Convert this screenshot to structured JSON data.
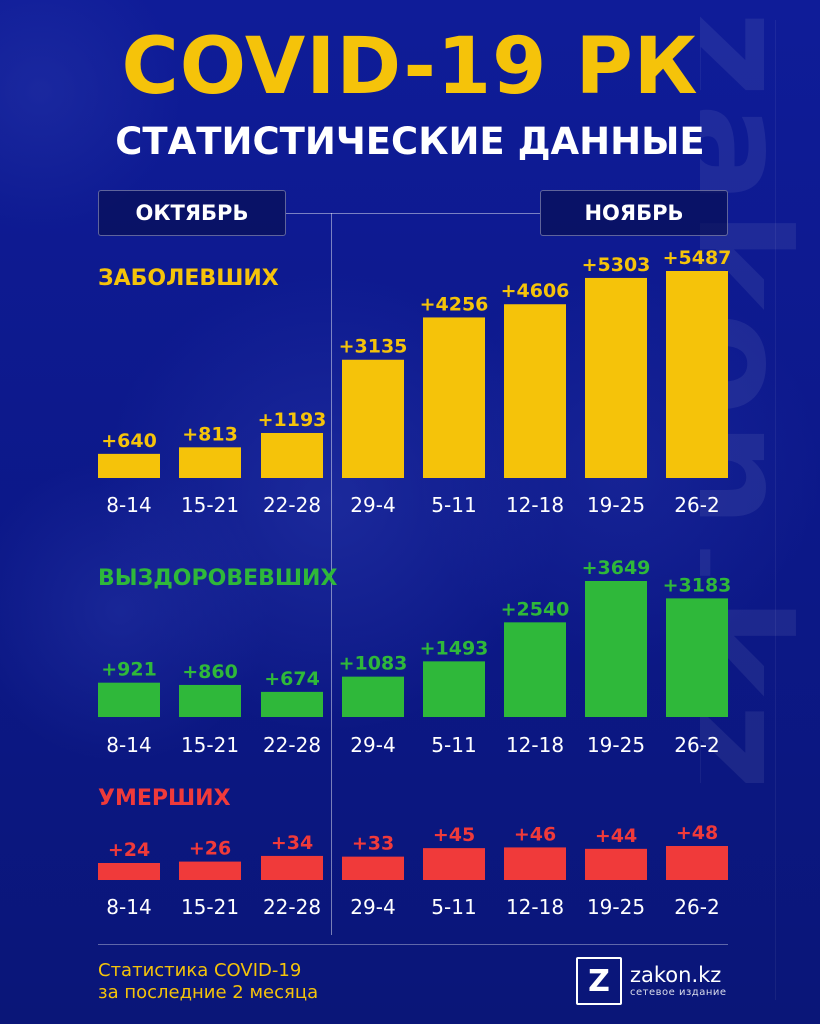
{
  "header": {
    "title": "COVID-19 РК",
    "subtitle": "СТАТИСТИЧЕСКИЕ ДАННЫЕ"
  },
  "months": {
    "october": "ОКТЯБРЬ",
    "november": "НОЯБРЬ"
  },
  "watermark": "zakon.kz",
  "colors": {
    "background": "#0d1a8c",
    "title": "#f5c30a",
    "cases": "#f5c30a",
    "recovered": "#2fb83a",
    "deaths": "#f03a3a"
  },
  "chart_data": [
    {
      "type": "bar",
      "title": "ЗАБОЛЕВШИХ",
      "color": "#f5c30a",
      "categories": [
        "8-14",
        "15-21",
        "22-28",
        "29-4",
        "5-11",
        "12-18",
        "19-25",
        "26-2"
      ],
      "values": [
        640,
        813,
        1193,
        3135,
        4256,
        4606,
        5303,
        5487
      ],
      "value_labels": [
        "+640",
        "+813",
        "+1193",
        "+3135",
        "+4256",
        "+4606",
        "+5303",
        "+5487"
      ]
    },
    {
      "type": "bar",
      "title": "ВЫЗДОРОВЕВШИХ",
      "color": "#2fb83a",
      "categories": [
        "8-14",
        "15-21",
        "22-28",
        "29-4",
        "5-11",
        "12-18",
        "19-25",
        "26-2"
      ],
      "values": [
        921,
        860,
        674,
        1083,
        1493,
        2540,
        3649,
        3183
      ],
      "value_labels": [
        "+921",
        "+860",
        "+674",
        "+1083",
        "+1493",
        "+2540",
        "+3649",
        "+3183"
      ]
    },
    {
      "type": "bar",
      "title": "УМЕРШИХ",
      "color": "#f03a3a",
      "categories": [
        "8-14",
        "15-21",
        "22-28",
        "29-4",
        "5-11",
        "12-18",
        "19-25",
        "26-2"
      ],
      "values": [
        24,
        26,
        34,
        33,
        45,
        46,
        44,
        48
      ],
      "value_labels": [
        "+24",
        "+26",
        "+34",
        "+33",
        "+45",
        "+46",
        "+44",
        "+48"
      ]
    }
  ],
  "footer": {
    "note_line1": "Статистика COVID-19",
    "note_line2": "за последние 2 месяца",
    "logo_letter": "Z",
    "logo_name": "zakon.kz",
    "logo_tagline": "сетевое издание"
  }
}
